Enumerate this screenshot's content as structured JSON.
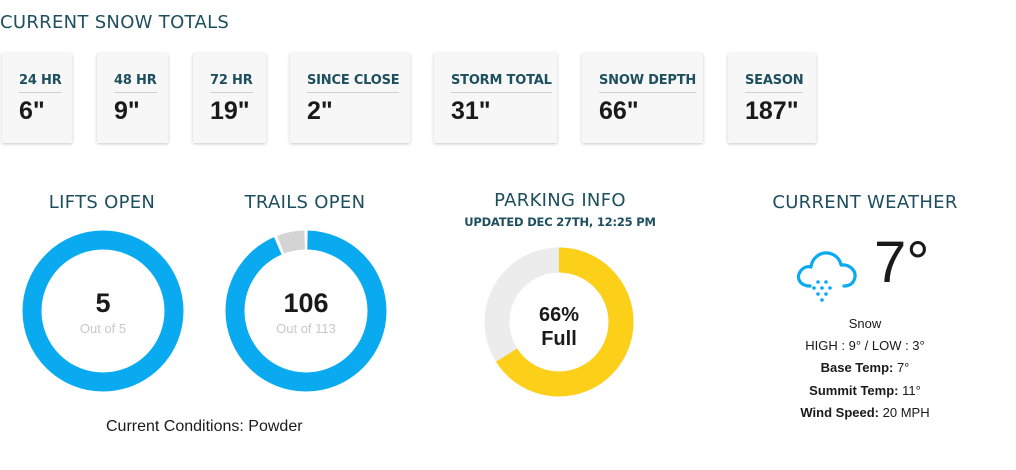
{
  "snow": {
    "title": "CURRENT SNOW TOTALS",
    "cards": [
      {
        "label": "24 HR",
        "value": "6\""
      },
      {
        "label": "48 HR",
        "value": "9\""
      },
      {
        "label": "72 HR",
        "value": "19\""
      },
      {
        "label": "SINCE CLOSE",
        "value": "2\""
      },
      {
        "label": "STORM TOTAL",
        "value": "31\""
      },
      {
        "label": "SNOW DEPTH",
        "value": "66\""
      },
      {
        "label": "SEASON",
        "value": "187\""
      }
    ]
  },
  "lifts": {
    "title": "LIFTS OPEN",
    "open": "5",
    "total_text": "Out of 5",
    "open_fraction": 1.0,
    "color": "#0aaaf0"
  },
  "trails": {
    "title": "TRAILS OPEN",
    "open": "106",
    "total_text": "Out of 113",
    "open_fraction": 0.938,
    "color": "#0aaaf0",
    "closed_color": "#d4d4d4"
  },
  "conditions": {
    "text": "Current Conditions: Powder"
  },
  "parking": {
    "title": "PARKING INFO",
    "updated": "UPDATED DEC 27TH, 12:25 PM",
    "percent_text": "66%",
    "full_text": "Full",
    "fraction": 0.66,
    "color": "#fccf19",
    "empty_color": "#ececec"
  },
  "weather": {
    "title": "CURRENT WEATHER",
    "icon": "snow-cloud-icon",
    "temp": "7°",
    "condition": "Snow",
    "high_low": "HIGH : 9° / LOW : 3°",
    "base_label": "Base Temp:",
    "base_value": " 7°",
    "summit_label": "Summit Temp:",
    "summit_value": " 11°",
    "wind_label": "Wind Speed:",
    "wind_value": " 20 MPH",
    "icon_color": "#0aaaf0"
  }
}
